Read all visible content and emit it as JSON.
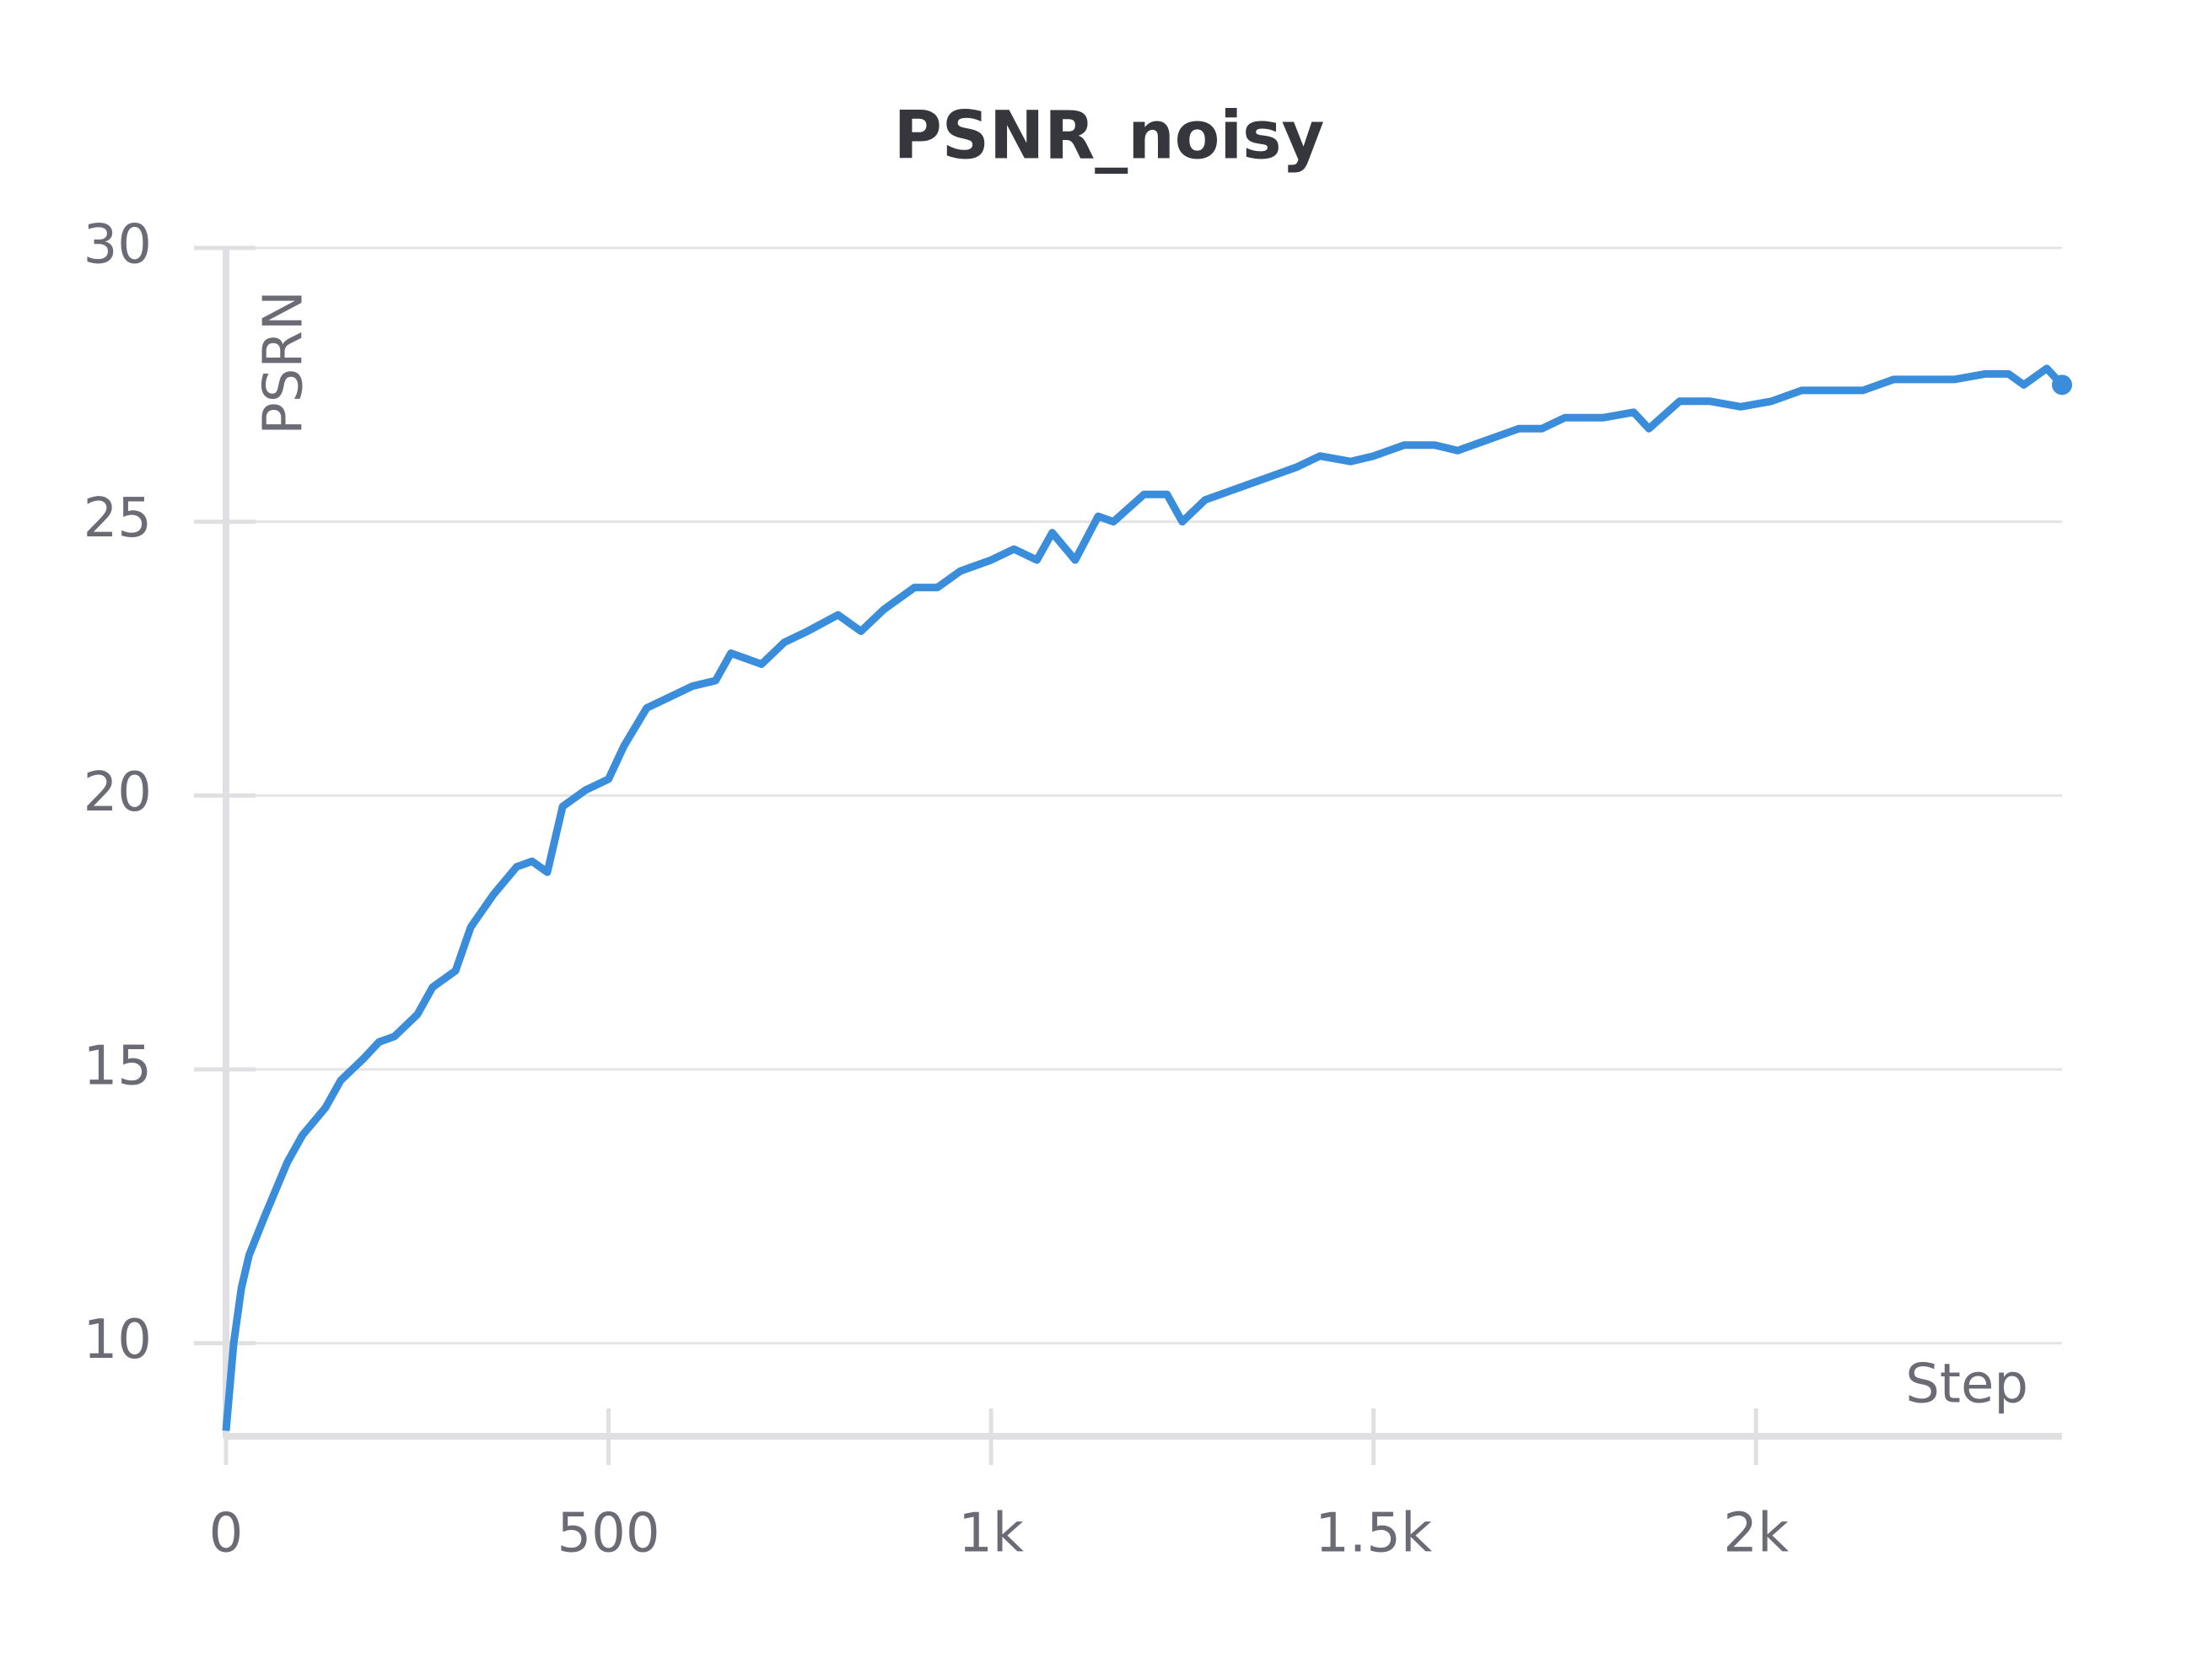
{
  "chart_data": {
    "type": "line",
    "title": "PSNR_noisy",
    "x_label": "Step",
    "y_label": "PSRN",
    "x": [
      0,
      10,
      20,
      30,
      50,
      80,
      100,
      130,
      150,
      180,
      200,
      220,
      250,
      270,
      300,
      320,
      350,
      380,
      400,
      420,
      440,
      470,
      500,
      520,
      550,
      580,
      610,
      640,
      660,
      700,
      730,
      760,
      800,
      830,
      860,
      900,
      930,
      960,
      1000,
      1030,
      1060,
      1080,
      1110,
      1140,
      1160,
      1200,
      1230,
      1250,
      1280,
      1320,
      1360,
      1400,
      1430,
      1470,
      1500,
      1540,
      1580,
      1610,
      1650,
      1690,
      1720,
      1750,
      1800,
      1840,
      1860,
      1900,
      1940,
      1980,
      2020,
      2060,
      2100,
      2140,
      2180,
      2220,
      2260,
      2300,
      2330,
      2350,
      2380,
      2400
    ],
    "series": [
      {
        "name": "PSNR_noisy",
        "color": "#3a8ddb",
        "values": [
          8.4,
          10,
          11,
          11.6,
          12.3,
          13.3,
          13.8,
          14.3,
          14.8,
          15.2,
          15.5,
          15.6,
          16.0,
          16.5,
          16.8,
          17.6,
          18.2,
          18.7,
          18.8,
          18.6,
          19.8,
          20.1,
          20.3,
          20.9,
          21.6,
          21.8,
          22.0,
          22.1,
          22.6,
          22.4,
          22.8,
          23.0,
          23.3,
          23.0,
          23.4,
          23.8,
          23.8,
          24.1,
          24.3,
          24.5,
          24.3,
          24.8,
          24.3,
          25.1,
          25.0,
          25.5,
          25.5,
          25.0,
          25.4,
          25.6,
          25.8,
          26.0,
          26.2,
          26.1,
          26.2,
          26.4,
          26.4,
          26.3,
          26.5,
          26.7,
          26.7,
          26.9,
          26.9,
          27.0,
          26.7,
          27.2,
          27.2,
          27.1,
          27.2,
          27.4,
          27.4,
          27.4,
          27.6,
          27.6,
          27.6,
          27.7,
          27.7,
          27.5,
          27.8,
          27.5
        ]
      }
    ],
    "xlim": [
      0,
      2400
    ],
    "ylim": [
      8.3,
      30
    ],
    "xticks": [
      0,
      500,
      {
        "value": 1000,
        "label": "1k"
      },
      {
        "value": 1500,
        "label": "1.5k"
      },
      {
        "value": 2000,
        "label": "2k"
      }
    ],
    "yticks": [
      10,
      15,
      20,
      25,
      30
    ],
    "grid": true
  }
}
